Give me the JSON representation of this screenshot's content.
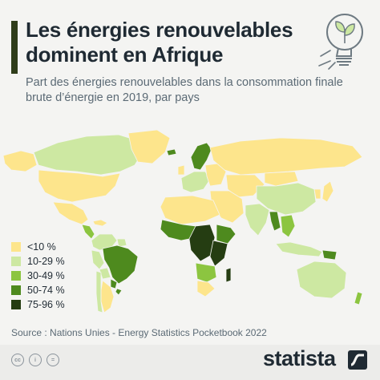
{
  "header": {
    "title": "Les énergies renouvelables dominent en Afrique",
    "subtitle": "Part des énergies renouvelables dans la consommation finale brute d’énergie en 2019, par pays"
  },
  "colors": {
    "accent": "#2f3d1a",
    "cat1": "#fde58c",
    "cat2": "#cde8a2",
    "cat3": "#8cc540",
    "cat4": "#4e8a1e",
    "cat5": "#253d12"
  },
  "legend": {
    "items": [
      {
        "label": "<10 %",
        "color": "#fde58c"
      },
      {
        "label": "10-29 %",
        "color": "#cde8a2"
      },
      {
        "label": "30-49 %",
        "color": "#8cc540"
      },
      {
        "label": "50-74 %",
        "color": "#4e8a1e"
      },
      {
        "label": "75-96 %",
        "color": "#253d12"
      }
    ]
  },
  "regions": {
    "canada": "cat2",
    "usa": "cat1",
    "greenland": "cat1",
    "alaska": "cat1",
    "mexico": "cat1",
    "central_america": "cat3",
    "caribbean": "cat1",
    "colombia_venezuela": "cat2",
    "brazil": "cat4",
    "peru": "cat2",
    "bolivia": "cat2",
    "paraguay": "cat4",
    "uruguay": "cat4",
    "argentina": "cat1",
    "chile": "cat2",
    "guyanas": "cat2",
    "iceland": "cat4",
    "scandinavia": "cat4",
    "uk": "cat1",
    "western_europe": "cat2",
    "eastern_europe": "cat1",
    "russia": "cat1",
    "middle_east": "cat1",
    "north_africa": "cat1",
    "west_africa": "cat4",
    "central_africa": "cat5",
    "east_africa": "cat5",
    "horn_africa": "cat4",
    "southern_africa": "cat3",
    "south_africa": "cat1",
    "madagascar": "cat5",
    "central_asia": "cat1",
    "china": "cat2",
    "mongolia": "cat1",
    "india": "cat2",
    "southeast_asia": "cat3",
    "myanmar": "cat4",
    "indonesia": "cat2",
    "png": "cat4",
    "japan": "cat1",
    "korea": "cat1",
    "australia": "cat2",
    "new_zealand": "cat3"
  },
  "source": "Source : Nations Unies - Energy Statistics Pocketbook 2022",
  "footer": {
    "brand": "statista",
    "license_icons": [
      "cc-icon",
      "by-icon",
      "equals-icon"
    ]
  }
}
